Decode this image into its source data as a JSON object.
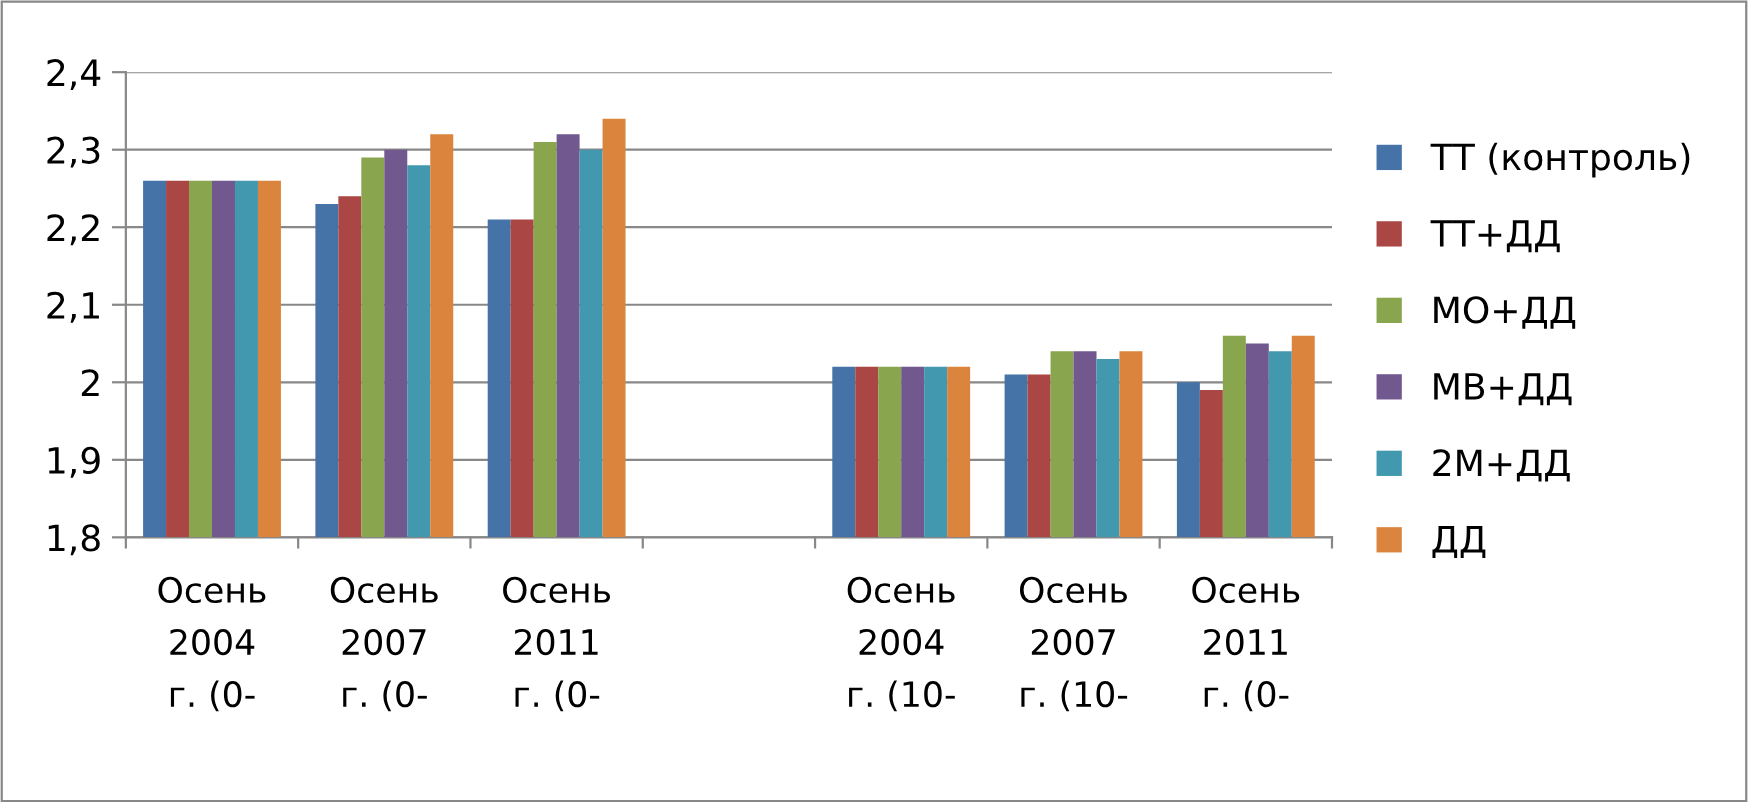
{
  "chart_data": {
    "type": "bar",
    "categories": [
      "Осень\n2004\nг. (0-",
      "Осень\n2007\nг. (0-",
      "Осень\n2011\nг. (0-",
      null,
      "Осень\n2004\nг. (10-",
      "Осень\n2007\nг. (10-",
      "Осень\n2011\nг. (0-"
    ],
    "series": [
      {
        "name": "ТТ (контроль)",
        "color": "#4572a7",
        "values": [
          2.26,
          2.23,
          2.21,
          null,
          2.02,
          2.01,
          2.0
        ]
      },
      {
        "name": "ТТ+ДД",
        "color": "#aa4643",
        "values": [
          2.26,
          2.24,
          2.21,
          null,
          2.02,
          2.01,
          1.99
        ]
      },
      {
        "name": "МО+ДД",
        "color": "#89a54e",
        "values": [
          2.26,
          2.29,
          2.31,
          null,
          2.02,
          2.04,
          2.06
        ]
      },
      {
        "name": "МВ+ДД",
        "color": "#71588f",
        "values": [
          2.26,
          2.3,
          2.32,
          null,
          2.02,
          2.04,
          2.05
        ]
      },
      {
        "name": "2М+ДД",
        "color": "#4198af",
        "values": [
          2.26,
          2.28,
          2.3,
          null,
          2.02,
          2.03,
          2.04
        ]
      },
      {
        "name": "ДД",
        "color": "#db843d",
        "values": [
          2.26,
          2.32,
          2.34,
          null,
          2.02,
          2.04,
          2.06
        ]
      }
    ],
    "ylim": [
      1.8,
      2.4
    ],
    "yticks": [
      {
        "value": 1.8,
        "label": "1,8"
      },
      {
        "value": 1.9,
        "label": "1,9"
      },
      {
        "value": 2.0,
        "label": "2"
      },
      {
        "value": 2.1,
        "label": "2,1"
      },
      {
        "value": 2.2,
        "label": "2,2"
      },
      {
        "value": 2.3,
        "label": "2,3"
      },
      {
        "value": 2.4,
        "label": "2,4"
      }
    ],
    "grid": "y",
    "legend": "right"
  }
}
